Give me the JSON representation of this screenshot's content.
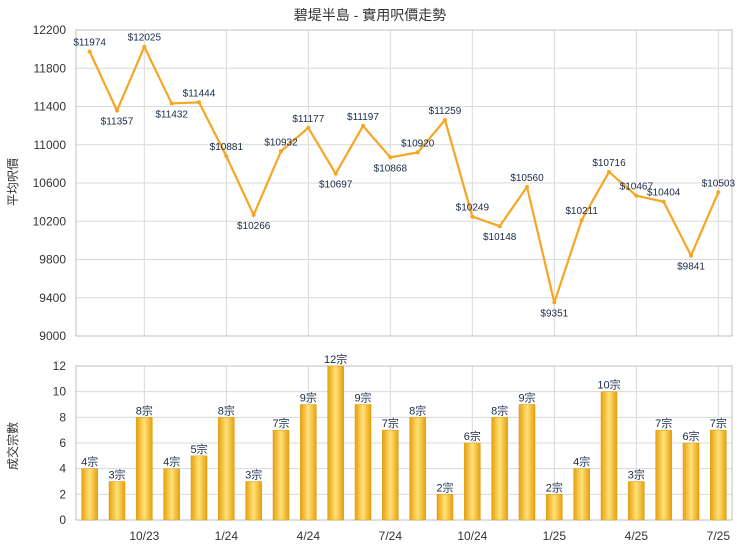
{
  "title": "碧堤半島 - 實用呎價走勢",
  "colors": {
    "line": "#f5a623",
    "bar_light": "#ffe27a",
    "bar_dark": "#e8a00c",
    "grid": "#d9d9d9"
  },
  "chart_data": [
    {
      "type": "line",
      "ylabel": "平均呎價",
      "ylim": [
        9000,
        12200
      ],
      "yticks": [
        9000,
        9400,
        9800,
        10200,
        10600,
        11000,
        11400,
        11800,
        12200
      ],
      "values": [
        11974,
        11357,
        12025,
        11432,
        11444,
        10881,
        10266,
        10932,
        11177,
        10697,
        11197,
        10868,
        10920,
        11259,
        10249,
        10148,
        10560,
        9351,
        10211,
        10716,
        10467,
        10404,
        9841,
        10503
      ],
      "labels": [
        "$11974",
        "$11357",
        "$12025",
        "$11432",
        "$11444",
        "$10881",
        "$10266",
        "$10932",
        "$11177",
        "$10697",
        "$11197",
        "$10868",
        "$10920",
        "$11259",
        "$10249",
        "$10148",
        "$10560",
        "$9351",
        "$10211",
        "$10716",
        "$10467",
        "$10404",
        "$9841",
        "$10503"
      ]
    },
    {
      "type": "bar",
      "ylabel": "成交宗數",
      "ylim": [
        0,
        12
      ],
      "yticks": [
        0,
        2,
        4,
        6,
        8,
        10,
        12
      ],
      "values": [
        4,
        3,
        8,
        4,
        5,
        8,
        3,
        7,
        9,
        12,
        9,
        7,
        8,
        2,
        6,
        8,
        9,
        2,
        4,
        10,
        3,
        7,
        6,
        7
      ],
      "labels": [
        "4宗",
        "3宗",
        "8宗",
        "4宗",
        "5宗",
        "8宗",
        "3宗",
        "7宗",
        "9宗",
        "12宗",
        "9宗",
        "7宗",
        "8宗",
        "2宗",
        "6宗",
        "8宗",
        "9宗",
        "2宗",
        "4宗",
        "10宗",
        "3宗",
        "7宗",
        "6宗",
        "7宗"
      ],
      "xticks": [
        {
          "index": 2,
          "label": "10/23"
        },
        {
          "index": 5,
          "label": "1/24"
        },
        {
          "index": 8,
          "label": "4/24"
        },
        {
          "index": 11,
          "label": "7/24"
        },
        {
          "index": 14,
          "label": "10/24"
        },
        {
          "index": 17,
          "label": "1/25"
        },
        {
          "index": 20,
          "label": "4/25"
        },
        {
          "index": 23,
          "label": "7/25"
        }
      ]
    }
  ]
}
